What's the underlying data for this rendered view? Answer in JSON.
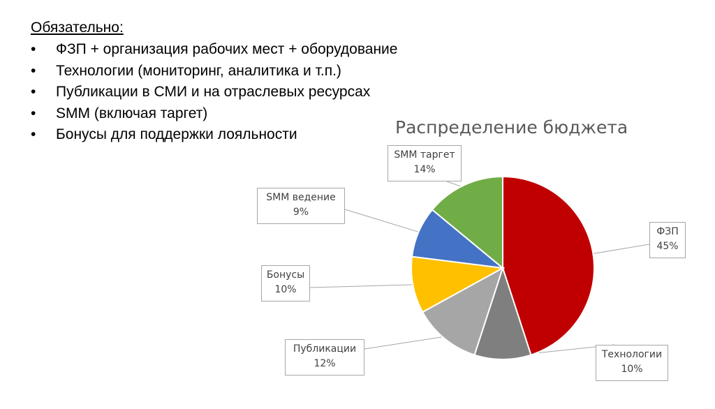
{
  "slide": {
    "heading": "Обязательно:",
    "bullet_char": "•",
    "bullets": [
      "ФЗП + организация рабочих мест + оборудование",
      "Технологии (мониторинг, аналитика и т.п.)",
      "Публикации в СМИ и на отраслевых ресурсах",
      "SMM (включая таргет)",
      "Бонусы для поддержки лояльности"
    ]
  },
  "chart_data": {
    "type": "pie",
    "title": "Распределение бюджета",
    "start_angle_deg": 0,
    "direction": "clockwise",
    "slices": [
      {
        "name": "ФЗП",
        "value": 45,
        "label": "45%",
        "color": "#c00000"
      },
      {
        "name": "Технологии",
        "value": 10,
        "label": "10%",
        "color": "#7f7f7f"
      },
      {
        "name": "Публикации",
        "value": 12,
        "label": "12%",
        "color": "#a6a6a6"
      },
      {
        "name": "Бонусы",
        "value": 10,
        "label": "10%",
        "color": "#ffc000"
      },
      {
        "name": "SMM ведение",
        "value": 9,
        "label": "9%",
        "color": "#4472c4"
      },
      {
        "name": "SMM таргет",
        "value": 14,
        "label": "14%",
        "color": "#70ad47"
      }
    ]
  }
}
